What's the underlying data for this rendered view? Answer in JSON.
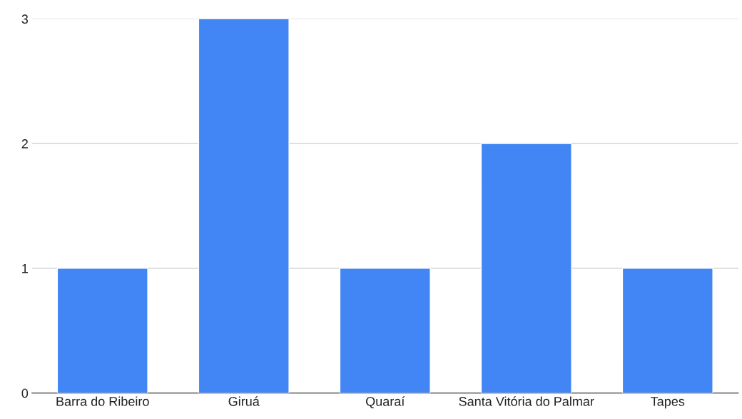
{
  "chart_data": {
    "type": "bar",
    "categories": [
      "Barra do Ribeiro",
      "Giruá",
      "Quaraí",
      "Santa Vitória do Palmar",
      "Tapes"
    ],
    "values": [
      1,
      3,
      1,
      2,
      1
    ],
    "color": "#4285f4",
    "ylim": [
      0,
      3
    ],
    "yticks": [
      0,
      1,
      2,
      3
    ],
    "grid": "y"
  }
}
